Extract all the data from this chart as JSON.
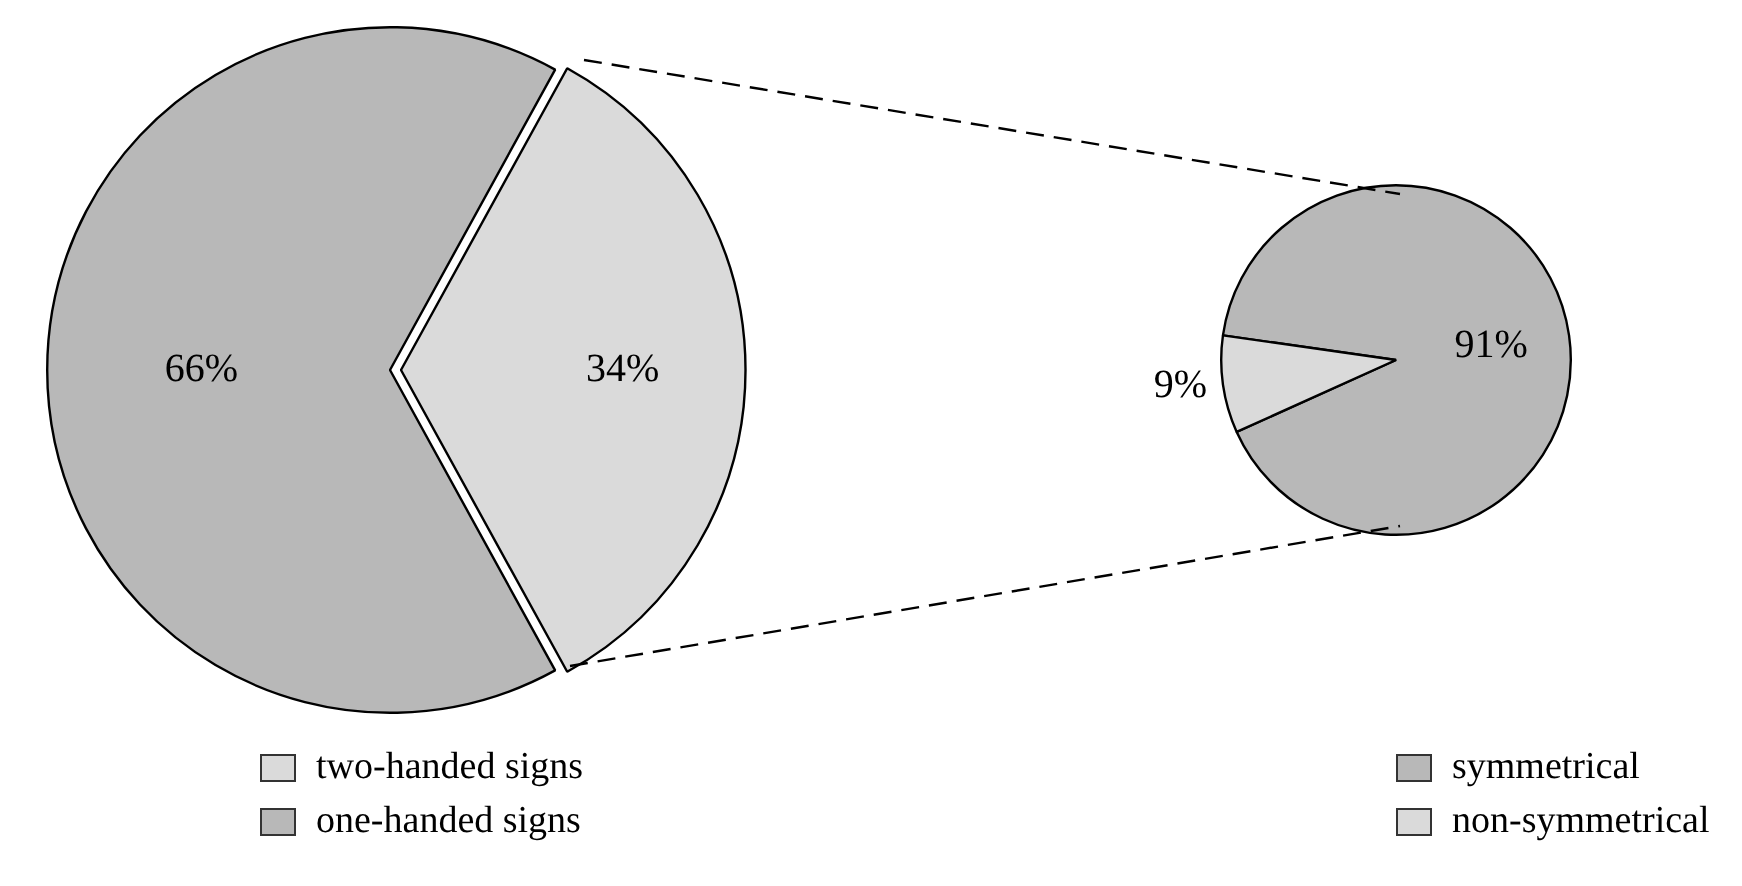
{
  "chart_data": [
    {
      "type": "pie",
      "categories": [
        "two-handed signs",
        "one-handed signs"
      ],
      "values": [
        34,
        66
      ],
      "colors": [
        "#dadada",
        "#b8b8b8"
      ],
      "value_labels": [
        "34%",
        "66%"
      ],
      "legend": "bottom left"
    },
    {
      "type": "pie",
      "categories": [
        "symmetrical",
        "non-symmetrical"
      ],
      "values": [
        91,
        9
      ],
      "colors": [
        "#b8b8b8",
        "#dadada"
      ],
      "value_labels": [
        "91%",
        "9%"
      ],
      "legend": "bottom right"
    }
  ]
}
